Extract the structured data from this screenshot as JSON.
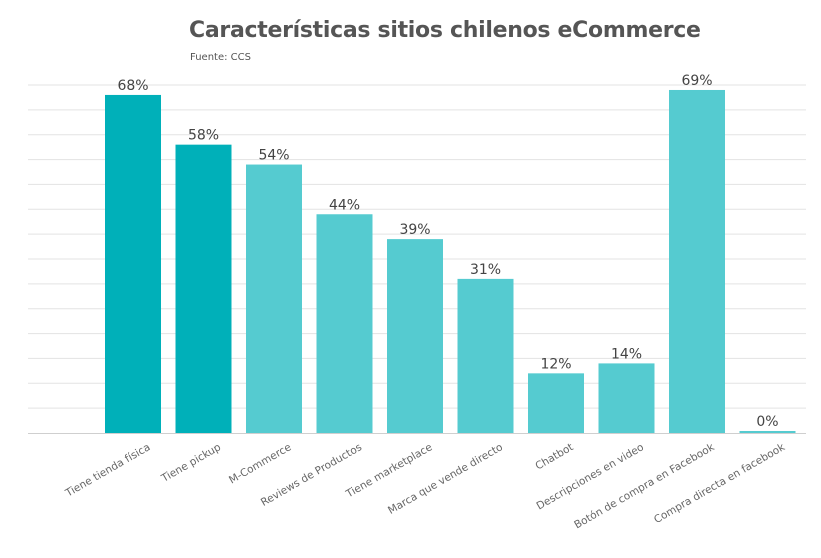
{
  "chart_data": {
    "type": "bar",
    "title": "Características sitios chilenos eCommerce",
    "subtitle": "Fuente: CCS",
    "xlabel": "",
    "ylabel": "",
    "ylim": [
      0,
      70
    ],
    "grid": true,
    "categories": [
      "Tiene tienda física",
      "Tiene pickup",
      "M-Commerce",
      "Reviews de Productos",
      "Tiene marketplace",
      "Marca que vende directo",
      "Chatbot",
      "Descripciones en video",
      "Botón de compra en Facebook",
      "Compra directa en facebook"
    ],
    "values": [
      68,
      58,
      54,
      44,
      39,
      31,
      12,
      14,
      69,
      0
    ],
    "value_labels": [
      "68%",
      "58%",
      "54%",
      "44%",
      "39%",
      "31%",
      "12%",
      "14%",
      "69%",
      "0%"
    ],
    "bar_colors": [
      "#00B0B9",
      "#00B0B9",
      "#55CBD0",
      "#55CBD0",
      "#55CBD0",
      "#55CBD0",
      "#55CBD0",
      "#55CBD0",
      "#55CBD0",
      "#55CBD0"
    ]
  }
}
